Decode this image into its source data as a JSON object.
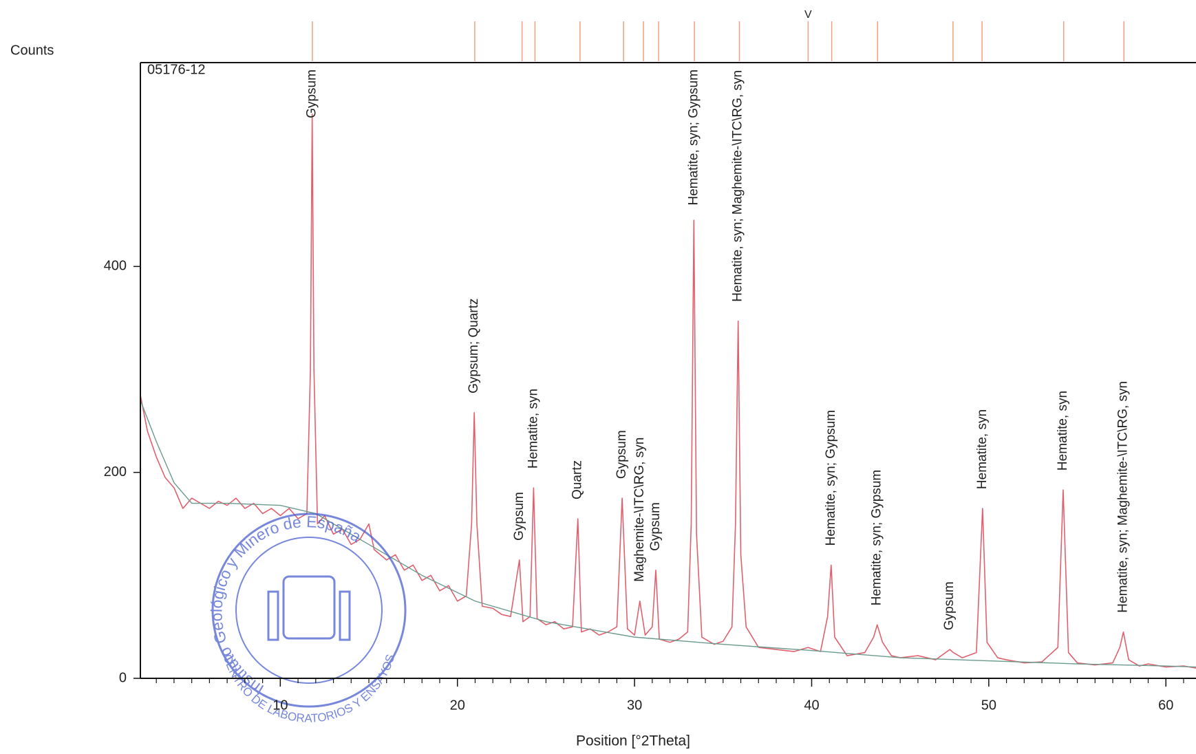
{
  "chart_data": {
    "type": "line",
    "y_label": "Counts",
    "x_label": "Position [°2Theta]",
    "sample_label": "05176-12",
    "xlim": [
      2.1,
      61.7
    ],
    "ylim": [
      0,
      598
    ],
    "xticks": [
      10,
      20,
      30,
      40,
      50,
      60
    ],
    "xminorticks": [
      3,
      4,
      5,
      6,
      7,
      8,
      9,
      11,
      12,
      13,
      14,
      15,
      16,
      17,
      18,
      19,
      21,
      22,
      23,
      24,
      25,
      26,
      27,
      28,
      29,
      31,
      32,
      33,
      34,
      35,
      36,
      37,
      38,
      39,
      41,
      42,
      43,
      44,
      45,
      46,
      47,
      48,
      49,
      51,
      52,
      53,
      54,
      55,
      56,
      57,
      58,
      59,
      61
    ],
    "yticks": [
      0,
      200,
      400
    ],
    "series": [
      {
        "color": "#e0606e",
        "x": [
          2.1,
          2.5,
          3.0,
          3.5,
          4.0,
          4.5,
          5,
          5.5,
          6,
          6.5,
          7,
          7.5,
          8,
          8.5,
          9,
          9.5,
          10,
          10.5,
          11,
          11.5,
          11.7,
          11.8,
          11.9,
          12.1,
          12.5,
          13,
          13.5,
          14,
          14.5,
          15,
          15.3,
          16,
          16.5,
          17,
          17.5,
          18,
          18.5,
          19,
          19.5,
          20,
          20.5,
          20.8,
          20.95,
          21.1,
          21.4,
          22,
          22.5,
          23,
          23.5,
          23.7,
          24.1,
          24.3,
          24.5,
          25,
          25.5,
          26,
          26.5,
          26.8,
          27.0,
          27.5,
          28,
          28.5,
          29,
          29.3,
          29.6,
          30,
          30.3,
          30.6,
          31,
          31.2,
          31.4,
          32,
          32.5,
          33,
          33.2,
          33.35,
          33.5,
          33.8,
          34.5,
          35,
          35.5,
          35.7,
          35.85,
          36.0,
          36.3,
          37,
          38,
          39,
          39.8,
          40.5,
          40.9,
          41.1,
          41.3,
          42,
          43,
          43.5,
          43.7,
          44,
          44.5,
          45,
          46,
          47,
          47.8,
          48,
          48.5,
          49.3,
          49.65,
          49.9,
          50.5,
          51,
          52,
          53,
          53.9,
          54.2,
          54.5,
          55,
          56,
          57,
          57.4,
          57.6,
          57.9,
          58.5,
          59,
          60,
          61,
          61.7
        ],
        "values": [
          275,
          240,
          215,
          195,
          185,
          165,
          175,
          170,
          165,
          172,
          168,
          175,
          165,
          170,
          160,
          165,
          158,
          165,
          155,
          160,
          300,
          548,
          300,
          150,
          158,
          140,
          145,
          130,
          135,
          150,
          125,
          115,
          120,
          105,
          110,
          95,
          100,
          85,
          90,
          75,
          80,
          150,
          258,
          150,
          70,
          68,
          62,
          60,
          115,
          55,
          60,
          185,
          58,
          52,
          55,
          48,
          50,
          155,
          45,
          48,
          42,
          45,
          50,
          175,
          48,
          42,
          75,
          42,
          50,
          105,
          38,
          35,
          38,
          45,
          150,
          445,
          140,
          40,
          33,
          36,
          50,
          150,
          347,
          120,
          50,
          30,
          28,
          26,
          30,
          26,
          60,
          110,
          40,
          22,
          25,
          40,
          52,
          35,
          22,
          20,
          22,
          18,
          28,
          25,
          20,
          25,
          165,
          35,
          20,
          18,
          15,
          16,
          30,
          183,
          25,
          15,
          13,
          15,
          30,
          45,
          18,
          12,
          14,
          11,
          12,
          10
        ]
      },
      {
        "color": "#6a9a8c",
        "x": [
          2.1,
          3,
          4,
          5,
          7,
          10,
          12,
          15,
          18,
          21,
          25,
          30,
          35,
          40,
          45,
          50,
          55,
          60,
          61.7
        ],
        "values": [
          270,
          230,
          190,
          170,
          170,
          168,
          160,
          130,
          100,
          75,
          55,
          40,
          33,
          27,
          20,
          17,
          14,
          12,
          11
        ]
      }
    ],
    "reference_lines": [
      11.81,
      20.98,
      23.65,
      24.38,
      26.92,
      29.38,
      30.5,
      31.36,
      33.38,
      35.92,
      41.13,
      43.72,
      47.98,
      49.62,
      54.23,
      57.63
    ],
    "marker": {
      "x": 39.8,
      "label": "V"
    },
    "peak_labels": [
      {
        "x": 11.8,
        "label": "Gypsum"
      },
      {
        "x": 20.95,
        "label": "Gypsum; Quartz"
      },
      {
        "x": 23.5,
        "label": "Gypsum"
      },
      {
        "x": 24.3,
        "label": "Hematite, syn"
      },
      {
        "x": 26.8,
        "label": "Quartz"
      },
      {
        "x": 29.3,
        "label": "Gypsum"
      },
      {
        "x": 30.3,
        "label": "Maghemite-\\ITC\\RG, syn"
      },
      {
        "x": 31.2,
        "label": "Gypsum"
      },
      {
        "x": 33.35,
        "label": "Hematite, syn; Gypsum"
      },
      {
        "x": 35.85,
        "label": "Hematite, syn; Maghemite-\\ITC\\RG, syn"
      },
      {
        "x": 41.1,
        "label": "Hematite, syn; Gypsum"
      },
      {
        "x": 43.7,
        "label": "Hematite, syn; Gypsum"
      },
      {
        "x": 47.8,
        "label": "Gypsum"
      },
      {
        "x": 49.65,
        "label": "Hematite, syn"
      },
      {
        "x": 54.2,
        "label": "Hematite, syn"
      },
      {
        "x": 57.6,
        "label": "Hematite, syn; Maghemite-\\ITC\\RG, syn"
      }
    ],
    "stamp": {
      "top_text": "Instituto Geológico y Minero de España",
      "bottom_text": "CENTRO DE LABORATORIOS Y ENSAYOS"
    }
  }
}
